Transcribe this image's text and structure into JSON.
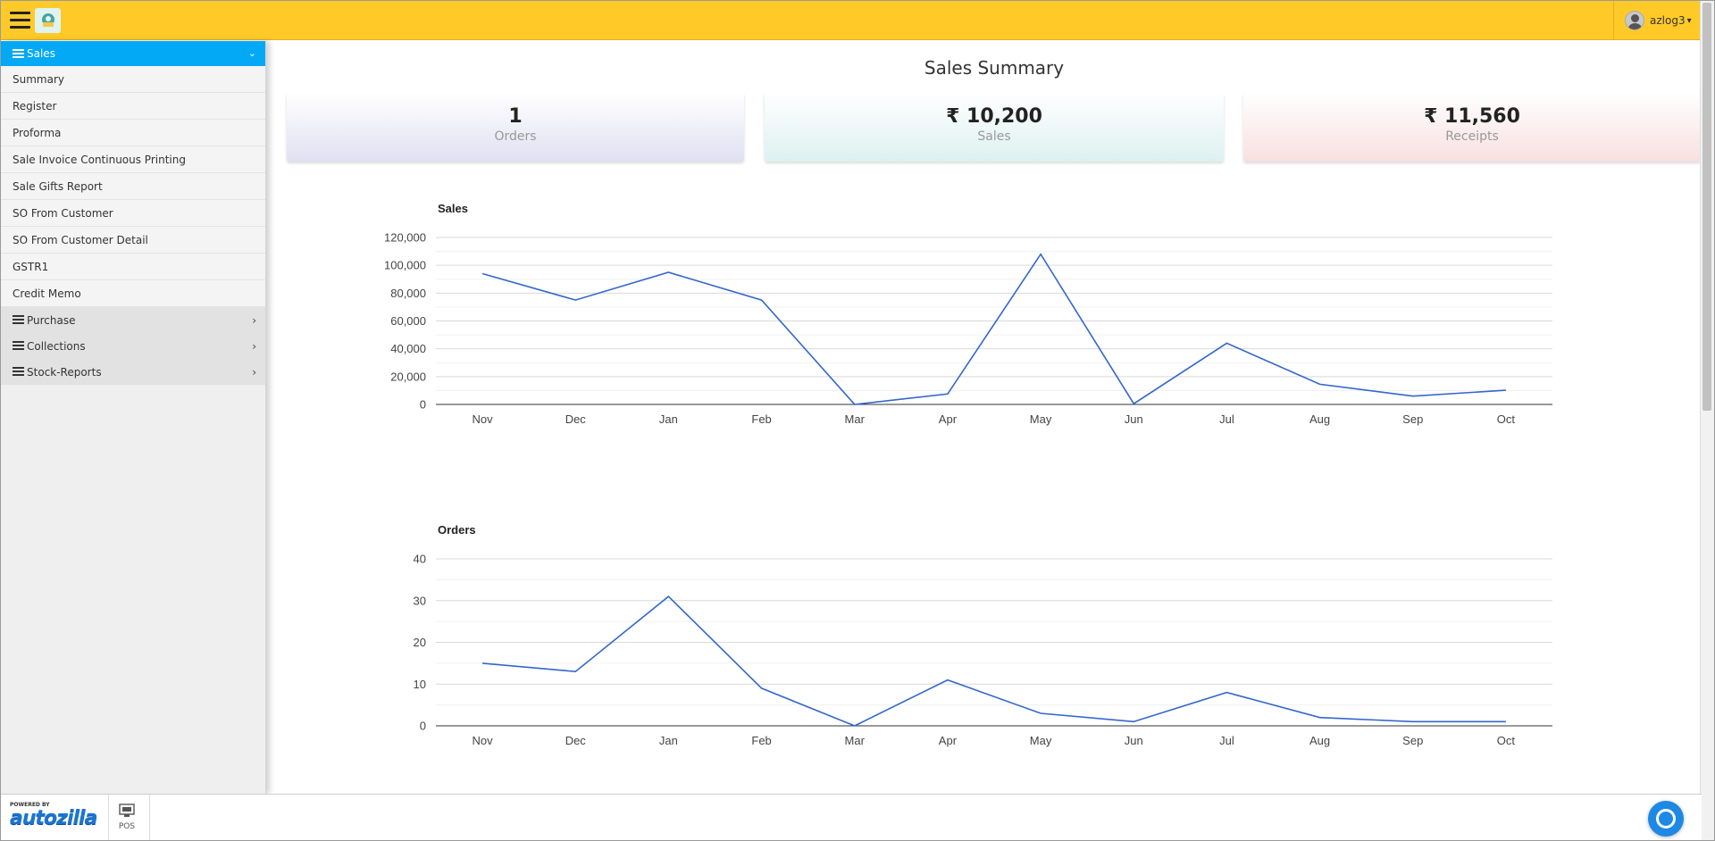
{
  "user": {
    "name": "azlog3"
  },
  "sidebar": {
    "active_menu": "Sales",
    "sales_items": [
      "Summary",
      "Register",
      "Proforma",
      "Sale Invoice Continuous Printing",
      "Sale Gifts Report",
      "SO From Customer",
      "SO From Customer Detail",
      "GSTR1",
      "Credit Memo"
    ],
    "groups": [
      "Purchase",
      "Collections",
      "Stock-Reports"
    ]
  },
  "page": {
    "title": "Sales Summary",
    "cards": [
      {
        "value": "1",
        "label": "Orders"
      },
      {
        "value": "₹ 10,200",
        "label": "Sales"
      },
      {
        "value": "₹ 11,560",
        "label": "Receipts"
      }
    ]
  },
  "footer": {
    "powered_by": "POWERED BY",
    "brand": "autozilla",
    "pos_label": "POS"
  },
  "colors": {
    "topbar": "#ffca28",
    "active_menu": "#03a9f4",
    "line": "#3366cc"
  },
  "icons": [
    "hamburger-icon",
    "app-logo-icon",
    "user-avatar-icon",
    "chevron-down-icon",
    "chevron-right-icon",
    "pos-register-icon",
    "chat-icon"
  ],
  "chart_data": [
    {
      "type": "line",
      "title": "Sales",
      "x": [
        "Nov",
        "Dec",
        "Jan",
        "Feb",
        "Mar",
        "Apr",
        "May",
        "Jun",
        "Jul",
        "Aug",
        "Sep",
        "Oct"
      ],
      "series": [
        {
          "values": [
            94000,
            75000,
            95000,
            75000,
            0,
            7500,
            108000,
            500,
            44000,
            14500,
            6000,
            10200
          ]
        }
      ],
      "ylim": [
        0,
        120000
      ],
      "yticks": [
        0,
        20000,
        40000,
        60000,
        80000,
        100000,
        120000
      ],
      "ytick_labels": [
        "0",
        "20,000",
        "40,000",
        "60,000",
        "80,000",
        "100,000",
        "120,000"
      ],
      "grid": true
    },
    {
      "type": "line",
      "title": "Orders",
      "x": [
        "Nov",
        "Dec",
        "Jan",
        "Feb",
        "Mar",
        "Apr",
        "May",
        "Jun",
        "Jul",
        "Aug",
        "Sep",
        "Oct"
      ],
      "series": [
        {
          "values": [
            15,
            13,
            31,
            9,
            0,
            11,
            3,
            1,
            8,
            2,
            1,
            1
          ]
        }
      ],
      "ylim": [
        0,
        40
      ],
      "yticks": [
        0,
        10,
        20,
        30,
        40
      ],
      "ytick_labels": [
        "0",
        "10",
        "20",
        "30",
        "40"
      ],
      "grid": true
    }
  ]
}
